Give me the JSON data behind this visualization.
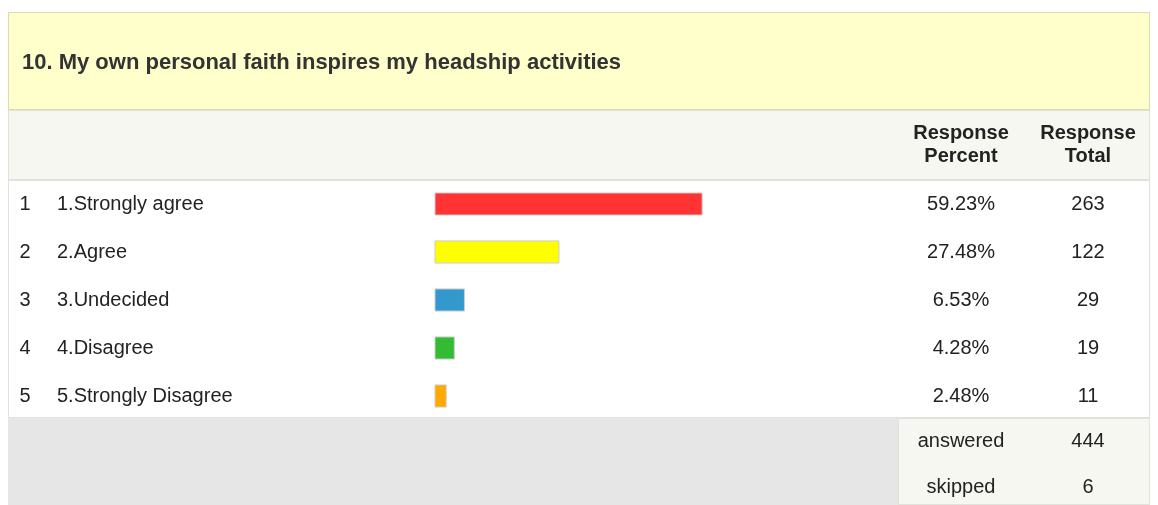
{
  "chart_data": {
    "type": "bar",
    "orientation": "horizontal",
    "title": "10. My own personal faith inspires my headship activities",
    "categories": [
      "1.Strongly agree",
      "2.Agree",
      "3.Undecided",
      "4.Disagree",
      "5.Strongly Disagree"
    ],
    "values": [
      59.23,
      27.48,
      6.53,
      4.28,
      2.48
    ],
    "colors": [
      "#ff3333",
      "#ffff00",
      "#3399cc",
      "#33bb33",
      "#ffaa00"
    ],
    "value_labels": [
      "59.23%",
      "27.48%",
      "6.53%",
      "4.28%",
      "2.48%"
    ],
    "tick_labels": false,
    "annotations": [
      "Response Percent",
      "Response Total",
      "1",
      "2",
      "3",
      "4",
      "5",
      "263",
      "122",
      "29",
      "19",
      "11",
      "answered",
      "444",
      "skipped",
      "6"
    ]
  }
}
